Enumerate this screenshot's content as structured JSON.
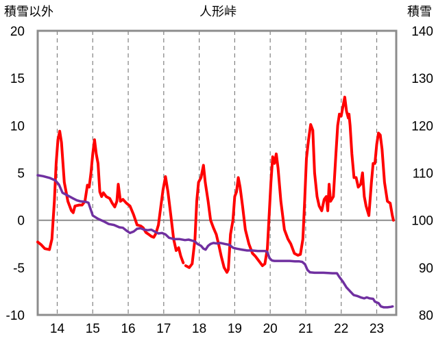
{
  "chart_data": {
    "type": "line",
    "title": "人形峠",
    "left_axis_label": "積雪以外",
    "right_axis_label": "積雪",
    "left_ylim": [
      -10,
      20
    ],
    "left_yticks": [
      "20",
      "15",
      "10",
      "5",
      "0",
      "-5",
      "-10"
    ],
    "right_ylim": [
      80,
      140
    ],
    "right_yticks": [
      "140",
      "130",
      "120",
      "110",
      "100",
      "90",
      "80"
    ],
    "xlim": [
      13.45,
      23.55
    ],
    "x_ticks": [
      "14",
      "15",
      "16",
      "17",
      "18",
      "19",
      "20",
      "21",
      "22",
      "23"
    ],
    "grid": "vertical dashed",
    "series": [
      {
        "axis": "left",
        "color": "#ff0000",
        "points": [
          [
            13.45,
            -2.3
          ],
          [
            13.55,
            -2.6
          ],
          [
            13.65,
            -3.0
          ],
          [
            13.78,
            -3.1
          ],
          [
            13.85,
            -2.0
          ],
          [
            13.92,
            2.0
          ],
          [
            13.97,
            6.0
          ],
          [
            14.02,
            8.5
          ],
          [
            14.07,
            9.4
          ],
          [
            14.12,
            8.2
          ],
          [
            14.2,
            4.0
          ],
          [
            14.3,
            2.0
          ],
          [
            14.4,
            1.0
          ],
          [
            14.45,
            0.8
          ],
          [
            14.5,
            1.5
          ],
          [
            14.62,
            1.6
          ],
          [
            14.7,
            1.6
          ],
          [
            14.78,
            2.0
          ],
          [
            14.85,
            3.7
          ],
          [
            14.9,
            3.5
          ],
          [
            14.95,
            5.0
          ],
          [
            15.0,
            7.0
          ],
          [
            15.05,
            8.5
          ],
          [
            15.1,
            7.0
          ],
          [
            15.15,
            6.0
          ],
          [
            15.2,
            3.0
          ],
          [
            15.25,
            2.5
          ],
          [
            15.3,
            2.9
          ],
          [
            15.38,
            2.5
          ],
          [
            15.48,
            2.3
          ],
          [
            15.55,
            1.8
          ],
          [
            15.62,
            1.4
          ],
          [
            15.68,
            2.0
          ],
          [
            15.72,
            3.8
          ],
          [
            15.78,
            2.0
          ],
          [
            15.85,
            2.2
          ],
          [
            15.95,
            1.8
          ],
          [
            16.05,
            1.5
          ],
          [
            16.15,
            0.6
          ],
          [
            16.25,
            -0.5
          ],
          [
            16.35,
            -0.6
          ],
          [
            16.42,
            -0.8
          ],
          [
            16.5,
            -1.3
          ],
          [
            16.58,
            -1.5
          ],
          [
            16.65,
            -1.7
          ],
          [
            16.72,
            -1.8
          ],
          [
            16.78,
            -1.4
          ],
          [
            16.85,
            -0.5
          ],
          [
            16.92,
            1.5
          ],
          [
            16.98,
            3.2
          ],
          [
            17.05,
            4.6
          ],
          [
            17.12,
            3.0
          ],
          [
            17.2,
            0.5
          ],
          [
            17.28,
            -2.0
          ],
          [
            17.35,
            -3.2
          ],
          [
            17.42,
            -2.9
          ],
          [
            17.48,
            -3.8
          ],
          [
            17.55,
            -4.5
          ]
        ]
      },
      {
        "axis": "left",
        "color": "#ff0000",
        "points": [
          [
            17.62,
            -4.8
          ],
          [
            17.72,
            -5.0
          ],
          [
            17.8,
            -4.6
          ],
          [
            17.88,
            -2.0
          ],
          [
            17.93,
            2.0
          ],
          [
            17.98,
            4.0
          ],
          [
            18.05,
            4.5
          ],
          [
            18.12,
            5.8
          ],
          [
            18.17,
            4.0
          ],
          [
            18.25,
            2.0
          ],
          [
            18.32,
            0.0
          ],
          [
            18.4,
            -0.8
          ],
          [
            18.48,
            -1.5
          ],
          [
            18.55,
            -2.6
          ],
          [
            18.62,
            -3.8
          ],
          [
            18.7,
            -5.0
          ],
          [
            18.78,
            -5.5
          ],
          [
            18.82,
            -5.2
          ],
          [
            18.88,
            -1.5
          ],
          [
            18.95,
            0.0
          ],
          [
            19.0,
            2.5
          ],
          [
            19.05,
            3.0
          ],
          [
            19.1,
            4.5
          ],
          [
            19.15,
            3.5
          ],
          [
            19.22,
            1.5
          ],
          [
            19.3,
            -1.0
          ],
          [
            19.4,
            -2.5
          ],
          [
            19.5,
            -3.5
          ],
          [
            19.58,
            -3.8
          ],
          [
            19.68,
            -4.3
          ],
          [
            19.78,
            -4.8
          ],
          [
            19.85,
            -4.6
          ],
          [
            19.92,
            -3.0
          ],
          [
            19.97,
            0.5
          ],
          [
            20.02,
            4.0
          ],
          [
            20.07,
            6.7
          ],
          [
            20.12,
            6.0
          ],
          [
            20.17,
            7.0
          ],
          [
            20.22,
            5.5
          ],
          [
            20.3,
            2.0
          ],
          [
            20.4,
            -1.0
          ],
          [
            20.5,
            -2.0
          ],
          [
            20.58,
            -2.5
          ],
          [
            20.68,
            -3.5
          ],
          [
            20.78,
            -3.7
          ],
          [
            20.85,
            -3.6
          ],
          [
            20.92,
            -2.0
          ],
          [
            20.97,
            2.0
          ],
          [
            21.02,
            6.5
          ],
          [
            21.08,
            8.5
          ],
          [
            21.14,
            10.1
          ],
          [
            21.2,
            9.5
          ],
          [
            21.25,
            5.0
          ],
          [
            21.32,
            2.5
          ],
          [
            21.38,
            1.5
          ],
          [
            21.45,
            1.0
          ],
          [
            21.52,
            2.2
          ],
          [
            21.58,
            2.5
          ],
          [
            21.62,
            1.0
          ],
          [
            21.66,
            3.8
          ],
          [
            21.7,
            2.0
          ],
          [
            21.78,
            2.5
          ],
          [
            21.85,
            7.0
          ],
          [
            21.9,
            10.0
          ],
          [
            21.95,
            11.2
          ],
          [
            22.0,
            11.0
          ],
          [
            22.05,
            12.0
          ],
          [
            22.1,
            13.0
          ],
          [
            22.15,
            11.5
          ],
          [
            22.2,
            10.8
          ],
          [
            22.22,
            11.2
          ],
          [
            22.25,
            10.0
          ],
          [
            22.3,
            7.0
          ],
          [
            22.36,
            4.5
          ],
          [
            22.42,
            4.5
          ],
          [
            22.48,
            3.5
          ],
          [
            22.55,
            3.8
          ],
          [
            22.6,
            5.0
          ],
          [
            22.65,
            2.5
          ],
          [
            22.7,
            1.5
          ],
          [
            22.78,
            0.5
          ],
          [
            22.85,
            4.0
          ],
          [
            22.9,
            6.0
          ],
          [
            22.95,
            6.0
          ],
          [
            23.0,
            8.0
          ],
          [
            23.05,
            9.2
          ],
          [
            23.1,
            9.0
          ],
          [
            23.15,
            7.5
          ],
          [
            23.22,
            4.0
          ],
          [
            23.3,
            2.0
          ],
          [
            23.38,
            1.8
          ],
          [
            23.44,
            0.5
          ],
          [
            23.47,
            0.0
          ]
        ]
      },
      {
        "axis": "right",
        "color": "#7030a0",
        "points": [
          [
            13.45,
            109.5
          ],
          [
            13.6,
            109.3
          ],
          [
            13.7,
            109.1
          ],
          [
            13.8,
            108.9
          ],
          [
            13.95,
            108.4
          ],
          [
            14.05,
            107.5
          ],
          [
            14.15,
            105.8
          ],
          [
            14.3,
            105.2
          ],
          [
            14.45,
            104.6
          ],
          [
            14.55,
            104.2
          ],
          [
            14.65,
            104.0
          ],
          [
            14.8,
            103.9
          ],
          [
            14.88,
            103.7
          ],
          [
            15.0,
            101.0
          ],
          [
            15.15,
            100.3
          ],
          [
            15.3,
            99.8
          ],
          [
            15.45,
            99.2
          ],
          [
            15.6,
            99.0
          ],
          [
            15.75,
            98.5
          ],
          [
            15.85,
            98.4
          ],
          [
            15.95,
            97.8
          ],
          [
            16.05,
            97.3
          ],
          [
            16.15,
            97.6
          ],
          [
            16.25,
            98.2
          ],
          [
            16.35,
            98.3
          ],
          [
            16.45,
            98.0
          ],
          [
            16.55,
            97.9
          ],
          [
            16.65,
            98.0
          ],
          [
            16.75,
            97.6
          ],
          [
            16.85,
            97.2
          ],
          [
            16.95,
            97.3
          ],
          [
            17.05,
            97.0
          ],
          [
            17.15,
            96.3
          ],
          [
            17.3,
            96.0
          ],
          [
            17.45,
            96.0
          ],
          [
            17.6,
            95.8
          ],
          [
            17.7,
            95.9
          ],
          [
            17.8,
            95.7
          ],
          [
            17.88,
            95.5
          ],
          [
            17.95,
            95.0
          ],
          [
            18.05,
            94.6
          ],
          [
            18.12,
            94.0
          ],
          [
            18.18,
            93.8
          ],
          [
            18.25,
            94.6
          ],
          [
            18.32,
            95.0
          ],
          [
            18.4,
            95.2
          ],
          [
            18.5,
            95.1
          ],
          [
            18.6,
            95.2
          ],
          [
            18.72,
            95.0
          ],
          [
            18.85,
            94.8
          ],
          [
            18.95,
            94.2
          ],
          [
            19.05,
            94.0
          ],
          [
            19.2,
            93.8
          ],
          [
            19.35,
            93.6
          ],
          [
            19.5,
            93.6
          ],
          [
            19.65,
            93.5
          ],
          [
            19.75,
            93.5
          ],
          [
            19.85,
            93.5
          ],
          [
            19.92,
            93.3
          ],
          [
            19.98,
            92.0
          ],
          [
            20.05,
            91.5
          ],
          [
            20.12,
            91.4
          ],
          [
            20.25,
            91.4
          ],
          [
            20.4,
            91.4
          ],
          [
            20.55,
            91.4
          ],
          [
            20.7,
            91.3
          ],
          [
            20.82,
            91.3
          ],
          [
            20.9,
            91.2
          ],
          [
            20.98,
            90.7
          ],
          [
            21.05,
            89.5
          ],
          [
            21.12,
            89.0
          ],
          [
            21.25,
            88.9
          ],
          [
            21.5,
            88.9
          ],
          [
            21.75,
            88.8
          ],
          [
            21.88,
            88.8
          ],
          [
            21.95,
            88.0
          ],
          [
            22.05,
            87.0
          ],
          [
            22.15,
            85.8
          ],
          [
            22.25,
            85.0
          ],
          [
            22.35,
            84.2
          ],
          [
            22.45,
            84.0
          ],
          [
            22.55,
            83.7
          ],
          [
            22.65,
            83.5
          ],
          [
            22.72,
            83.7
          ],
          [
            22.8,
            83.5
          ],
          [
            22.9,
            83.4
          ],
          [
            22.95,
            82.8
          ],
          [
            23.05,
            82.5
          ],
          [
            23.12,
            81.8
          ],
          [
            23.2,
            81.6
          ],
          [
            23.3,
            81.6
          ],
          [
            23.4,
            81.7
          ],
          [
            23.45,
            81.8
          ]
        ]
      }
    ]
  }
}
